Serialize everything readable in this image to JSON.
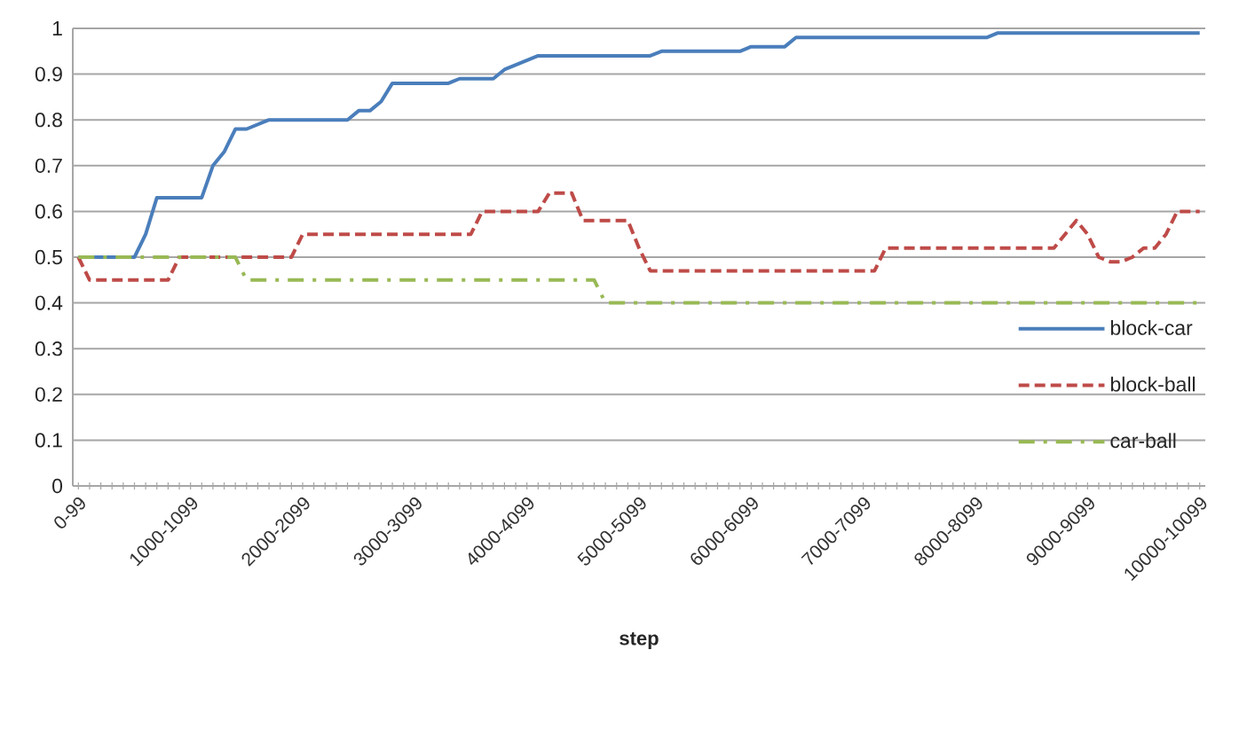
{
  "chart_data": {
    "type": "line",
    "xlabel": "step",
    "categories": [
      "0-99",
      null,
      null,
      null,
      null,
      null,
      null,
      null,
      null,
      null,
      "1000-1099",
      null,
      null,
      null,
      null,
      null,
      null,
      null,
      null,
      null,
      "2000-2099",
      null,
      null,
      null,
      null,
      null,
      null,
      null,
      null,
      null,
      "3000-3099",
      null,
      null,
      null,
      null,
      null,
      null,
      null,
      null,
      null,
      "4000-4099",
      null,
      null,
      null,
      null,
      null,
      null,
      null,
      null,
      null,
      "5000-5099",
      null,
      null,
      null,
      null,
      null,
      null,
      null,
      null,
      null,
      "6000-6099",
      null,
      null,
      null,
      null,
      null,
      null,
      null,
      null,
      null,
      "7000-7099",
      null,
      null,
      null,
      null,
      null,
      null,
      null,
      null,
      null,
      "8000-8099",
      null,
      null,
      null,
      null,
      null,
      null,
      null,
      null,
      null,
      "9000-9099",
      null,
      null,
      null,
      null,
      null,
      null,
      null,
      null,
      null,
      "10000-10099"
    ],
    "series": [
      {
        "name": "block-car",
        "color": "#4a7ebb",
        "line_style": "solid",
        "values": [
          0.5,
          0.5,
          0.5,
          0.5,
          0.5,
          0.5,
          0.55,
          0.63,
          0.63,
          0.63,
          0.63,
          0.63,
          0.7,
          0.73,
          0.78,
          0.78,
          0.79,
          0.8,
          0.8,
          0.8,
          0.8,
          0.8,
          0.8,
          0.8,
          0.8,
          0.82,
          0.82,
          0.84,
          0.88,
          0.88,
          0.88,
          0.88,
          0.88,
          0.88,
          0.89,
          0.89,
          0.89,
          0.89,
          0.91,
          0.92,
          0.93,
          0.94,
          0.94,
          0.94,
          0.94,
          0.94,
          0.94,
          0.94,
          0.94,
          0.94,
          0.94,
          0.94,
          0.95,
          0.95,
          0.95,
          0.95,
          0.95,
          0.95,
          0.95,
          0.95,
          0.96,
          0.96,
          0.96,
          0.96,
          0.98,
          0.98,
          0.98,
          0.98,
          0.98,
          0.98,
          0.98,
          0.98,
          0.98,
          0.98,
          0.98,
          0.98,
          0.98,
          0.98,
          0.98,
          0.98,
          0.98,
          0.98,
          0.99,
          0.99,
          0.99,
          0.99,
          0.99,
          0.99,
          0.99,
          0.99,
          0.99,
          0.99,
          0.99,
          0.99,
          0.99,
          0.99,
          0.99,
          0.99,
          0.99,
          0.99,
          0.99
        ]
      },
      {
        "name": "block-ball",
        "color": "#be4b48",
        "line_style": "dashed",
        "values": [
          0.5,
          0.45,
          0.45,
          0.45,
          0.45,
          0.45,
          0.45,
          0.45,
          0.45,
          0.5,
          0.5,
          0.5,
          0.5,
          0.5,
          0.5,
          0.5,
          0.5,
          0.5,
          0.5,
          0.5,
          0.55,
          0.55,
          0.55,
          0.55,
          0.55,
          0.55,
          0.55,
          0.55,
          0.55,
          0.55,
          0.55,
          0.55,
          0.55,
          0.55,
          0.55,
          0.55,
          0.6,
          0.6,
          0.6,
          0.6,
          0.6,
          0.6,
          0.64,
          0.64,
          0.64,
          0.58,
          0.58,
          0.58,
          0.58,
          0.58,
          0.52,
          0.47,
          0.47,
          0.47,
          0.47,
          0.47,
          0.47,
          0.47,
          0.47,
          0.47,
          0.47,
          0.47,
          0.47,
          0.47,
          0.47,
          0.47,
          0.47,
          0.47,
          0.47,
          0.47,
          0.47,
          0.47,
          0.52,
          0.52,
          0.52,
          0.52,
          0.52,
          0.52,
          0.52,
          0.52,
          0.52,
          0.52,
          0.52,
          0.52,
          0.52,
          0.52,
          0.52,
          0.52,
          0.55,
          0.58,
          0.55,
          0.5,
          0.49,
          0.49,
          0.5,
          0.52,
          0.52,
          0.55,
          0.6,
          0.6,
          0.6
        ]
      },
      {
        "name": "car-ball",
        "color": "#98b954",
        "line_style": "dashdot",
        "values": [
          0.5,
          0.5,
          0.5,
          0.5,
          0.5,
          0.5,
          0.5,
          0.5,
          0.5,
          0.5,
          0.5,
          0.5,
          0.5,
          0.5,
          0.5,
          0.45,
          0.45,
          0.45,
          0.45,
          0.45,
          0.45,
          0.45,
          0.45,
          0.45,
          0.45,
          0.45,
          0.45,
          0.45,
          0.45,
          0.45,
          0.45,
          0.45,
          0.45,
          0.45,
          0.45,
          0.45,
          0.45,
          0.45,
          0.45,
          0.45,
          0.45,
          0.45,
          0.45,
          0.45,
          0.45,
          0.45,
          0.45,
          0.4,
          0.4,
          0.4,
          0.4,
          0.4,
          0.4,
          0.4,
          0.4,
          0.4,
          0.4,
          0.4,
          0.4,
          0.4,
          0.4,
          0.4,
          0.4,
          0.4,
          0.4,
          0.4,
          0.4,
          0.4,
          0.4,
          0.4,
          0.4,
          0.4,
          0.4,
          0.4,
          0.4,
          0.4,
          0.4,
          0.4,
          0.4,
          0.4,
          0.4,
          0.4,
          0.4,
          0.4,
          0.4,
          0.4,
          0.4,
          0.4,
          0.4,
          0.4,
          0.4,
          0.4,
          0.4,
          0.4,
          0.4,
          0.4,
          0.4,
          0.4,
          0.4,
          0.4,
          0.4
        ]
      }
    ],
    "ylim": [
      0,
      1
    ],
    "yticks": [
      0,
      0.1,
      0.2,
      0.3,
      0.4,
      0.5,
      0.6,
      0.7,
      0.8,
      0.9,
      1
    ],
    "grid": "y",
    "legend": "right"
  }
}
